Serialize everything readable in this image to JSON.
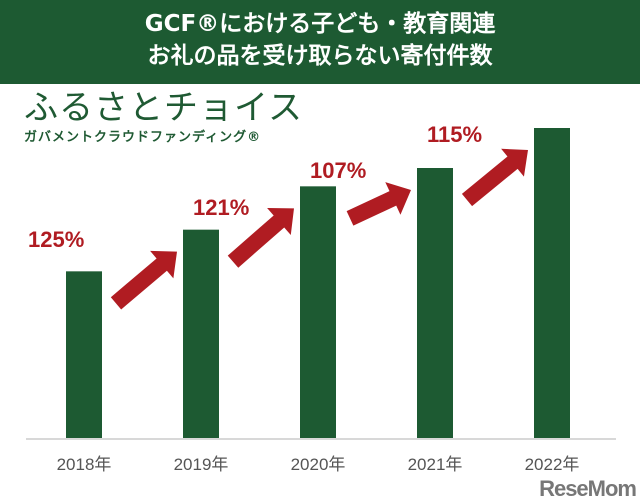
{
  "header": {
    "line1": "GCF®における子ども・教育関連",
    "line2": "お礼の品を受け取らない寄付件数"
  },
  "logo": {
    "main": "ふるさとチョイス",
    "sub": "ガバメントクラウドファンディング®"
  },
  "watermark": "ReseMom",
  "chart_data": {
    "type": "bar",
    "title": "GCF®における子ども・教育関連 お礼の品を受け取らない寄付件数",
    "categories": [
      "2018年",
      "2019年",
      "2020年",
      "2021年",
      "2022年"
    ],
    "values": [
      100,
      125,
      151,
      162,
      186
    ],
    "value_note": "relative index (no y-axis shown)",
    "growth_labels": [
      "125%",
      "121%",
      "107%",
      "115%"
    ],
    "xlabel": "",
    "ylabel": "",
    "ylim": [
      0,
      200
    ],
    "grid": false,
    "colors": {
      "bar": "#1d5a32",
      "arrow": "#b01c22",
      "label": "#b01c22"
    }
  }
}
